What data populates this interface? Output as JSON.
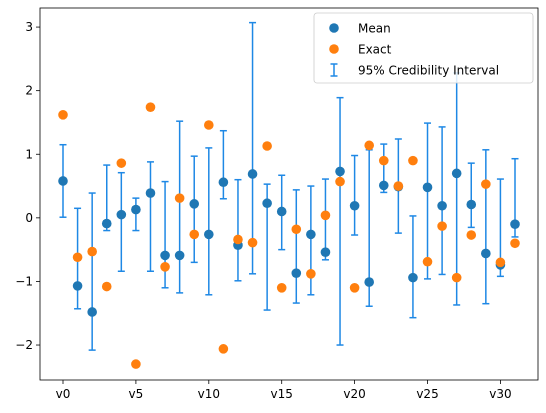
{
  "chart_data": {
    "type": "scatter",
    "title": "",
    "xlabel": "",
    "ylabel": "",
    "categories": [
      "v0",
      "v1",
      "v2",
      "v3",
      "v4",
      "v5",
      "v6",
      "v7",
      "v8",
      "v9",
      "v10",
      "v11",
      "v12",
      "v13",
      "v14",
      "v15",
      "v16",
      "v17",
      "v18",
      "v19",
      "v20",
      "v21",
      "v22",
      "v23",
      "v24",
      "v25",
      "v26",
      "v27",
      "v28",
      "v29",
      "v30",
      "v31"
    ],
    "x_tick_labels": [
      "v0",
      "v5",
      "v10",
      "v15",
      "v20",
      "v25",
      "v30"
    ],
    "x_tick_index": [
      0,
      5,
      10,
      15,
      20,
      25,
      30
    ],
    "ylim": [
      -2.55,
      3.3
    ],
    "y_ticks": [
      -2,
      -1,
      0,
      1,
      2,
      3
    ],
    "y_tick_labels": [
      "−2",
      "−1",
      "0",
      "1",
      "2",
      "3"
    ],
    "legend_position": "top-right",
    "series": [
      {
        "name": "Mean",
        "kind": "point",
        "color": "#1f77b4",
        "values": [
          0.58,
          -1.07,
          -1.48,
          -0.09,
          0.05,
          0.13,
          0.39,
          -0.59,
          -0.59,
          0.22,
          -0.26,
          0.56,
          -0.43,
          0.69,
          0.23,
          0.1,
          -0.87,
          -0.26,
          -0.54,
          0.73,
          0.19,
          -1.01,
          0.51,
          0.49,
          -0.94,
          0.48,
          0.19,
          0.7,
          0.21,
          -0.56,
          -0.74,
          -0.1
        ]
      },
      {
        "name": "Exact",
        "kind": "point",
        "color": "#ff7f0e",
        "values": [
          1.62,
          -0.62,
          -0.53,
          -1.08,
          0.86,
          -2.3,
          1.74,
          -0.77,
          0.31,
          -0.26,
          1.46,
          -2.06,
          -0.34,
          -0.39,
          1.13,
          -1.1,
          -0.18,
          -0.88,
          0.04,
          0.57,
          -1.1,
          1.14,
          0.9,
          0.5,
          0.9,
          -0.69,
          -0.13,
          -0.94,
          -0.27,
          0.53,
          -0.7,
          -0.4
        ]
      },
      {
        "name": "95% Credibility Interval",
        "kind": "errorbar",
        "color": "#1e88e5",
        "lower": [
          0.01,
          -1.43,
          -2.08,
          -0.2,
          -0.84,
          -0.2,
          -0.84,
          -1.1,
          -1.18,
          -0.7,
          -1.21,
          0.3,
          -0.99,
          -0.88,
          -1.45,
          -0.5,
          -1.34,
          -1.21,
          -0.66,
          -2.0,
          -0.27,
          -1.39,
          0.4,
          -0.24,
          -1.57,
          -0.96,
          -0.89,
          -1.37,
          -0.15,
          -1.35,
          -0.92,
          -0.3
        ],
        "upper": [
          1.15,
          0.15,
          0.39,
          0.83,
          0.71,
          0.31,
          0.88,
          0.57,
          1.52,
          0.97,
          1.1,
          1.37,
          0.6,
          3.07,
          0.53,
          0.67,
          0.44,
          0.5,
          0.61,
          1.89,
          0.98,
          1.07,
          1.16,
          1.24,
          0.03,
          1.49,
          1.43,
          2.28,
          0.86,
          1.07,
          0.61,
          0.93
        ]
      }
    ]
  }
}
